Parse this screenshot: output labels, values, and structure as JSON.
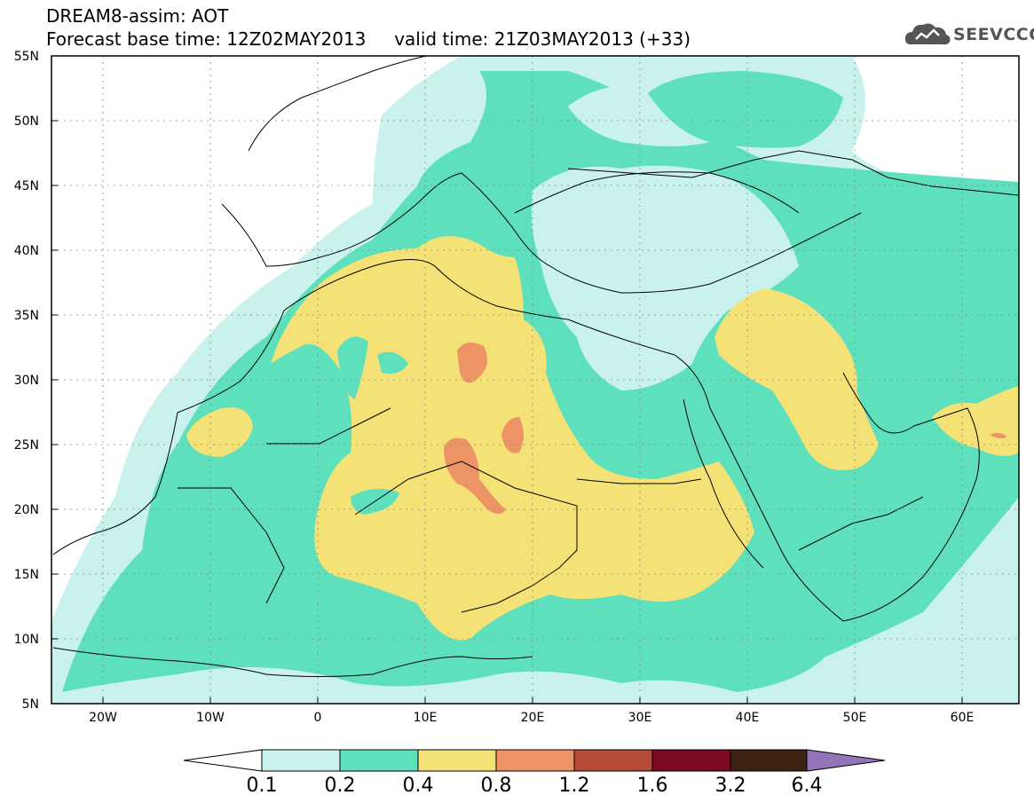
{
  "header": {
    "title_line1": "DREAM8-assim: AOT",
    "title_line2": "Forecast base time: 12Z02MAY2013     valid time: 21Z03MAY2013 (+33)",
    "logo_text": "SEEVCCC"
  },
  "map": {
    "lat_labels": [
      "55N",
      "50N",
      "45N",
      "40N",
      "35N",
      "30N",
      "25N",
      "20N",
      "15N",
      "10N",
      "5N"
    ],
    "lon_labels": [
      "20W",
      "10W",
      "0",
      "10E",
      "20E",
      "30E",
      "40E",
      "50E",
      "60E"
    ],
    "variable": "AOT"
  },
  "colorbar": {
    "levels": [
      "0.1",
      "0.2",
      "0.4",
      "0.8",
      "1.2",
      "1.6",
      "3.2",
      "6.4"
    ],
    "colors": [
      "#ffffff",
      "#c9f2ec",
      "#5ee0bc",
      "#f5e276",
      "#ec9466",
      "#b54a36",
      "#7d0a24",
      "#3d2314",
      "#9474b8"
    ]
  }
}
